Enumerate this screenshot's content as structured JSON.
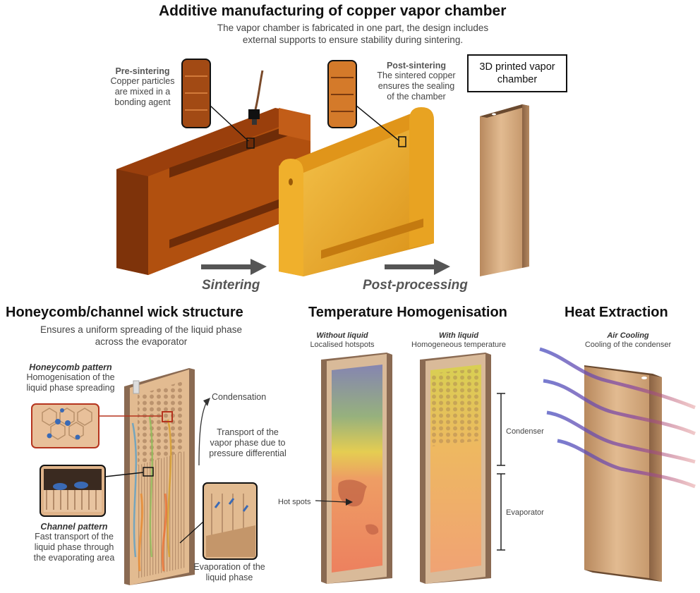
{
  "top": {
    "title": "Additive manufacturing of copper vapor chamber",
    "subtitle_line1": "The vapor chamber is fabricated in one part, the design includes",
    "subtitle_line2": "external supports to ensure stability during sintering.",
    "pre_title": "Pre-sintering",
    "pre_l1": "Copper particles",
    "pre_l2": "are mixed in a",
    "pre_l3": "bonding agent",
    "post_title": "Post-sintering",
    "post_l1": "The sintered copper",
    "post_l2": "ensures the sealing",
    "post_l3": "of the chamber",
    "box_l1": "3D printed vapor",
    "box_l2": "chamber",
    "arrow1": "Sintering",
    "arrow2": "Post-processing"
  },
  "wick": {
    "title": "Honeycomb/channel wick structure",
    "sub_l1": "Ensures a uniform spreading of the liquid phase",
    "sub_l2": "across the evaporator",
    "honey_title": "Honeycomb pattern",
    "honey_l1": "Homogenisation of the",
    "honey_l2": "liquid phase spreading",
    "chan_title": "Channel pattern",
    "chan_l1": "Fast transport of the",
    "chan_l2": "liquid phase through",
    "chan_l3": "the evaporating area",
    "condensation": "Condensation",
    "transport_l1": "Transport of the",
    "transport_l2": "vapor phase due to",
    "transport_l3": "pressure differential",
    "evap_l1": "Evaporation of the",
    "evap_l2": "liquid phase"
  },
  "temp": {
    "title": "Temperature Homogenisation",
    "without_title": "Without liquid",
    "without_sub": "Localised hotspots",
    "with_title": "With liquid",
    "with_sub": "Homogeneous temperature",
    "hot_spots": "Hot spots",
    "condenser": "Condenser",
    "evaporator": "Evaporator"
  },
  "heat": {
    "title": "Heat Extraction",
    "air_title": "Air Cooling",
    "air_sub": "Cooling of the condenser"
  },
  "colors": {
    "copper_dark": "#a8460e",
    "copper_gold": "#e8a322",
    "copper_plate": "#d2a679",
    "arrow_grey": "#555555",
    "highlight_red": "#b5341e"
  }
}
